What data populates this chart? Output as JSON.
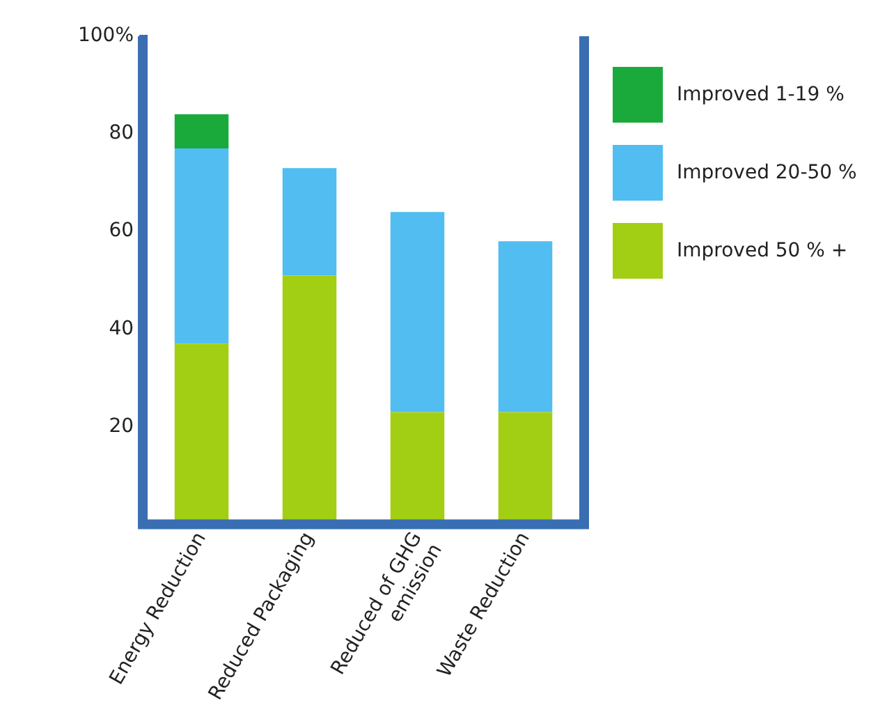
{
  "chart_data": {
    "type": "bar",
    "stacked": true,
    "categories": [
      "Energy Reduction",
      "Reduced Packaging",
      "Reduced of GHG\nemission",
      "Waste Reduction"
    ],
    "series": [
      {
        "name": "Improved 50 % +",
        "color": "#a2cf14",
        "values": [
          37,
          51,
          23,
          23
        ]
      },
      {
        "name": "Improved 20-50 %",
        "color": "#52bdf0",
        "values": [
          40,
          22,
          41,
          35
        ]
      },
      {
        "name": "Improved 1-19 %",
        "color": "#1aaa3c",
        "values": [
          7,
          null,
          null,
          null
        ]
      }
    ],
    "ylim": [
      0,
      100
    ],
    "yticks": [
      20,
      40,
      60,
      80,
      {
        "value": 100,
        "label": "100%"
      }
    ],
    "legend": "top right"
  }
}
